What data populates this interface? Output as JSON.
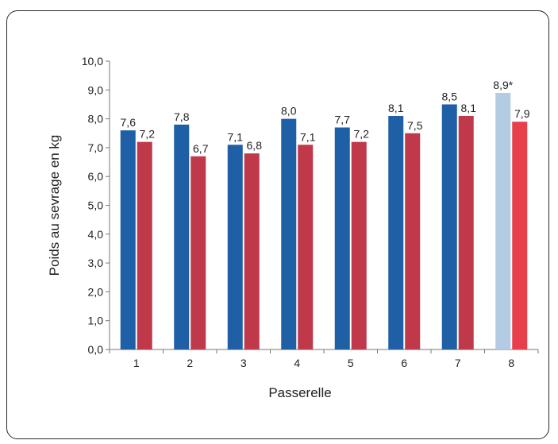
{
  "chart_data": {
    "type": "bar",
    "xlabel": "Passerelle",
    "ylabel": "Poids au sevrage en kg",
    "ylim": [
      0,
      10
    ],
    "yticks": [
      "0,0",
      "1,0",
      "2,0",
      "3,0",
      "4,0",
      "5,0",
      "6,0",
      "7,0",
      "8,0",
      "9,0",
      "10,0"
    ],
    "categories": [
      "1",
      "2",
      "3",
      "4",
      "5",
      "6",
      "7",
      "8"
    ],
    "grid": false,
    "legend": "none",
    "series": [
      {
        "color": "#1f5fa5",
        "highlight_color": "#b3cbe3",
        "values": [
          7.6,
          7.8,
          7.1,
          8.0,
          7.7,
          8.1,
          8.5,
          8.9
        ],
        "labels": [
          "7,6",
          "7,8",
          "7,1",
          "8,0",
          "7,7",
          "8,1",
          "8,5",
          "8,9*"
        ]
      },
      {
        "color": "#c0394a",
        "highlight_color": "#e8404a",
        "values": [
          7.2,
          6.7,
          6.8,
          7.1,
          7.2,
          7.5,
          8.1,
          7.9
        ],
        "labels": [
          "7,2",
          "6,7",
          "6,8",
          "7,1",
          "7,2",
          "7,5",
          "8,1",
          "7,9"
        ]
      }
    ],
    "highlight_category_index": 7
  }
}
